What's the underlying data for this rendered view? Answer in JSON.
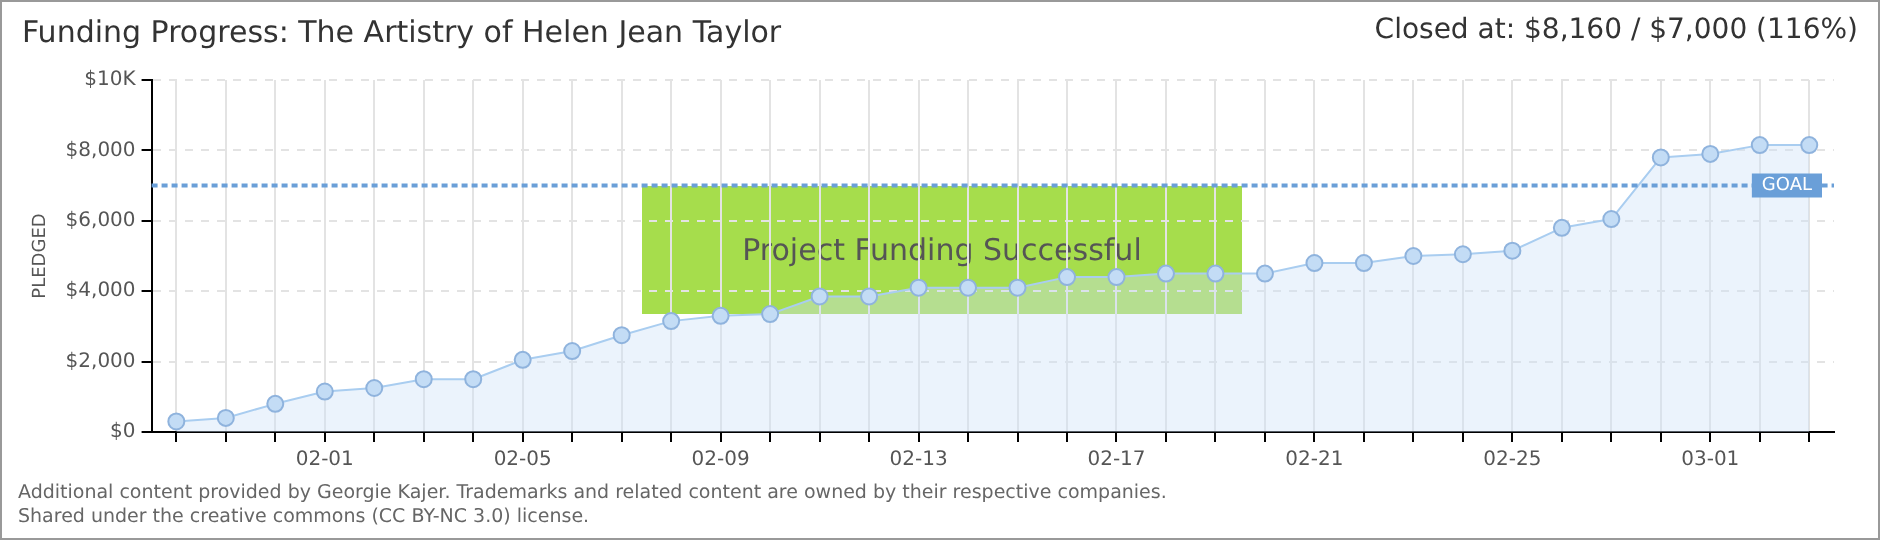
{
  "chart_data": {
    "type": "area",
    "title": "Funding Progress: The Artistry of Helen Jean Taylor",
    "subtitle": "Closed at: $8,160 / $7,000 (116%)",
    "ylabel": "PLEDGED",
    "categories": [
      null,
      null,
      null,
      "02-01",
      null,
      null,
      null,
      "02-05",
      null,
      null,
      null,
      "02-09",
      null,
      null,
      null,
      "02-13",
      null,
      null,
      null,
      "02-17",
      null,
      null,
      null,
      "02-21",
      null,
      null,
      null,
      "02-25",
      null,
      null,
      null,
      "03-01",
      null,
      null
    ],
    "series": [
      {
        "color": "#a9cdf0",
        "values": [
          300,
          400,
          800,
          1150,
          1250,
          1500,
          1500,
          2050,
          2300,
          2750,
          3150,
          3300,
          3350,
          3850,
          3850,
          4100,
          4100,
          4100,
          4400,
          4400,
          4500,
          4500,
          4500,
          4800,
          4800,
          5000,
          5050,
          5150,
          5800,
          6050,
          7800,
          7900,
          8150,
          8150
        ]
      }
    ],
    "ylim": [
      0,
      10000
    ],
    "yticks": [
      {
        "value": 0,
        "label": "$0"
      },
      {
        "value": 2000,
        "label": "$2,000"
      },
      {
        "value": 4000,
        "label": "$4,000"
      },
      {
        "value": 6000,
        "label": "$6,000"
      },
      {
        "value": 8000,
        "label": "$8,000"
      },
      {
        "value": 10000,
        "label": "$10K"
      }
    ],
    "ref_lines": [
      {
        "axis": "y",
        "value": 7000,
        "label": "GOAL",
        "color": "#6a9fd8",
        "line_style": "dotted"
      }
    ],
    "grid": true,
    "legend": false,
    "marker": "circle",
    "line_style": "solid",
    "annotations": [
      "Project Funding Successful",
      "Additional content provided by Georgie Kajer. Trademarks and related content are owned by their respective companies.",
      "Shared under the creative commons (CC BY-NC 3.0) license."
    ]
  }
}
